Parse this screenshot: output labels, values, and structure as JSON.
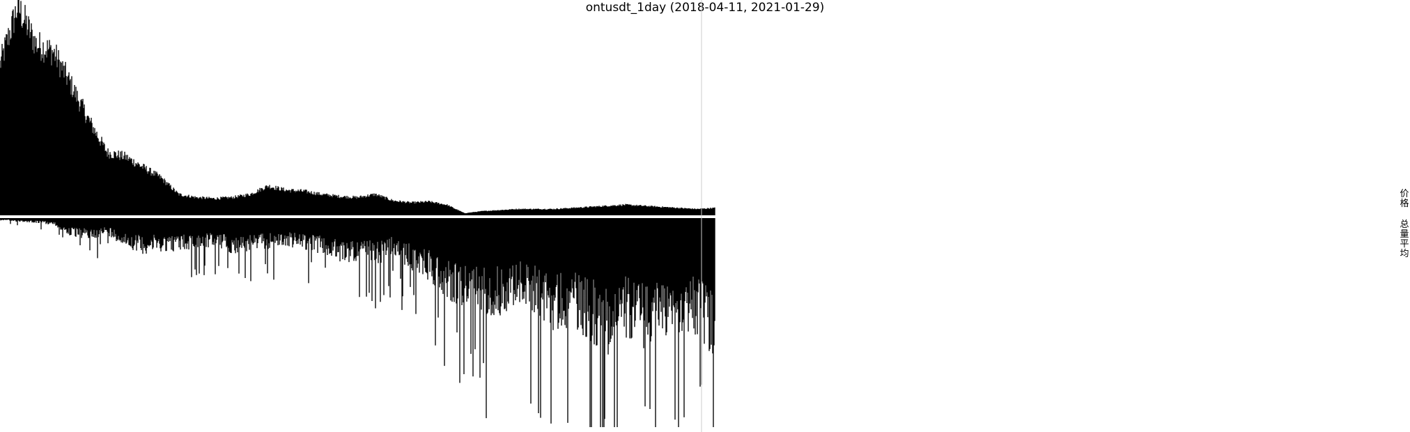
{
  "chart_data": {
    "type": "bar",
    "title": "ontusdt_1day (2018-04-11, 2021-01-29)",
    "x_range": [
      "2018-04-11",
      "2021-01-29"
    ],
    "legend": [
      "价格",
      "总量平均"
    ],
    "legend_position": "right",
    "grid": false,
    "colors": {
      "bars": "#000000",
      "cursor_line": "#cccccc",
      "background": "#ffffff"
    },
    "series": [
      {
        "name": "价格",
        "direction": "up",
        "profile_levels": [
          0.72,
          1.0,
          0.82,
          0.78,
          0.62,
          0.45,
          0.3,
          0.28,
          0.23,
          0.18,
          0.1,
          0.085,
          0.08,
          0.085,
          0.1,
          0.14,
          0.12,
          0.115,
          0.1,
          0.09,
          0.085,
          0.1,
          0.07,
          0.06,
          0.065,
          0.05,
          0.01,
          0.02,
          0.025,
          0.03,
          0.03,
          0.03,
          0.035,
          0.04,
          0.045,
          0.05,
          0.045,
          0.04,
          0.035,
          0.03,
          0.035
        ]
      },
      {
        "name": "总量平均",
        "direction": "down",
        "profile_levels": [
          0.01,
          0.015,
          0.02,
          0.03,
          0.08,
          0.09,
          0.07,
          0.12,
          0.15,
          0.14,
          0.14,
          0.13,
          0.12,
          0.15,
          0.14,
          0.13,
          0.12,
          0.13,
          0.15,
          0.19,
          0.18,
          0.2,
          0.16,
          0.22,
          0.26,
          0.34,
          0.38,
          0.4,
          0.41,
          0.36,
          0.4,
          0.48,
          0.45,
          0.52,
          0.57,
          0.5,
          0.55,
          0.5,
          0.48,
          0.5,
          0.62
        ]
      }
    ]
  }
}
